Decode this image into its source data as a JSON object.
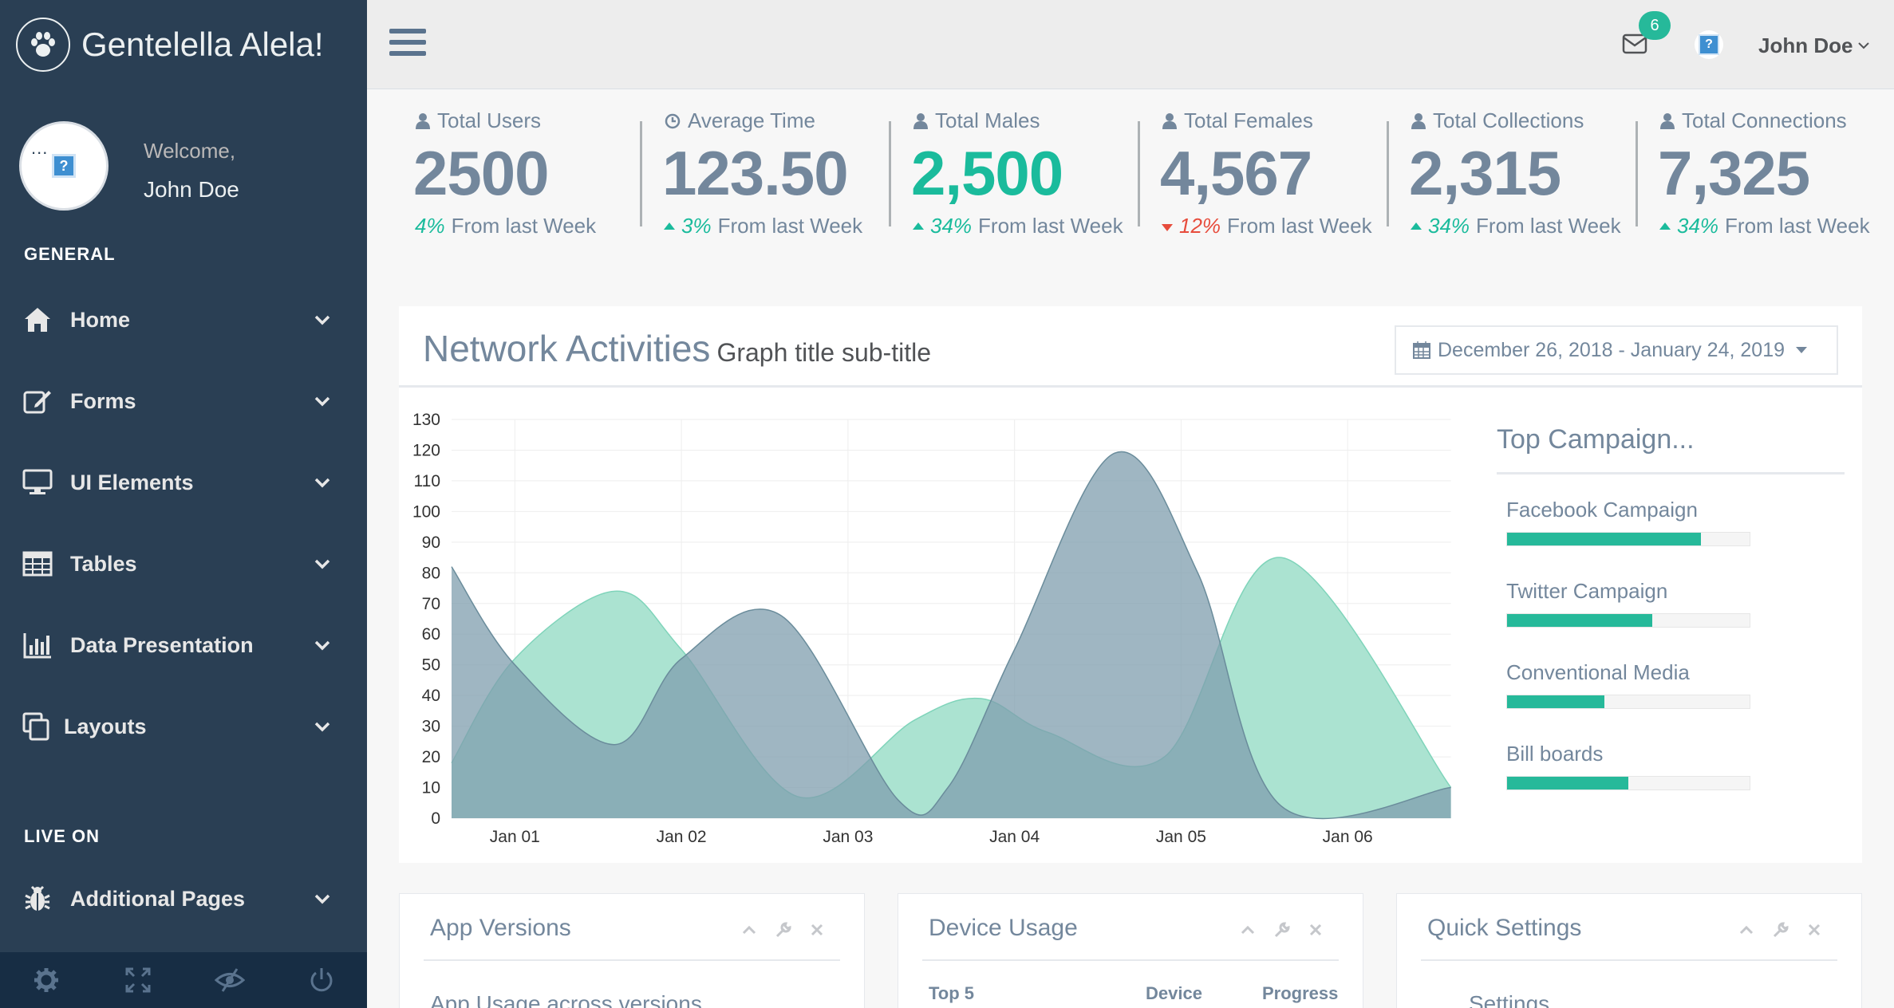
{
  "brand": {
    "title": "Gentelella Alela!",
    "logo_icon": "paw-icon"
  },
  "profile": {
    "welcome": "Welcome,",
    "name": "John Doe",
    "avatar_placeholder": "?",
    "dots": "..."
  },
  "sidebar": {
    "section_general": "GENERAL",
    "section_live": "LIVE ON",
    "items": [
      {
        "label": "Home",
        "icon": "home-icon"
      },
      {
        "label": "Forms",
        "icon": "edit-icon"
      },
      {
        "label": "UI Elements",
        "icon": "desktop-icon"
      },
      {
        "label": "Tables",
        "icon": "table-icon"
      },
      {
        "label": "Data Presentation",
        "icon": "bar-chart-icon"
      },
      {
        "label": "Layouts",
        "icon": "clone-icon"
      }
    ],
    "live_items": [
      {
        "label": "Additional Pages",
        "icon": "bug-icon"
      }
    ],
    "footer_icons": [
      "gear-icon",
      "fullscreen-icon",
      "eye-slash-icon",
      "power-icon"
    ]
  },
  "topnav": {
    "mail_count": "6",
    "user_name": "John Doe",
    "avatar_placeholder": "?"
  },
  "tiles": [
    {
      "label": "Total Users",
      "icon": "user-icon",
      "value": "2500",
      "value_color": "default",
      "pct": "4%",
      "trend": "none",
      "foot": "From last Week"
    },
    {
      "label": "Average Time",
      "icon": "clock-icon",
      "value": "123.50",
      "value_color": "default",
      "pct": "3%",
      "trend": "up",
      "foot": "From last Week"
    },
    {
      "label": "Total Males",
      "icon": "user-icon",
      "value": "2,500",
      "value_color": "green",
      "pct": "34%",
      "trend": "up",
      "foot": "From last Week"
    },
    {
      "label": "Total Females",
      "icon": "user-icon",
      "value": "4,567",
      "value_color": "default",
      "pct": "12%",
      "trend": "down",
      "foot": "From last Week"
    },
    {
      "label": "Total Collections",
      "icon": "user-icon",
      "value": "2,315",
      "value_color": "default",
      "pct": "34%",
      "trend": "up",
      "foot": "From last Week"
    },
    {
      "label": "Total Connections",
      "icon": "user-icon",
      "value": "7,325",
      "value_color": "default",
      "pct": "34%",
      "trend": "up",
      "foot": "From last Week"
    }
  ],
  "network": {
    "title": "Network Activities",
    "subtitle": "Graph title sub-title",
    "date_range": "December 26, 2018 - January 24, 2019"
  },
  "chart_data": {
    "type": "area",
    "x_ticks": [
      "Jan 01",
      "Jan 02",
      "Jan 03",
      "Jan 04",
      "Jan 05",
      "Jan 06"
    ],
    "ylim": [
      0,
      130
    ],
    "y_ticks": [
      0,
      10,
      20,
      30,
      40,
      50,
      60,
      70,
      80,
      90,
      100,
      110,
      120,
      130
    ],
    "grid": true,
    "series": [
      {
        "color": "#96CA59",
        "fill": "#A7E1CF",
        "stroke": "#7FD4BA",
        "x": [
          0.62,
          1.0,
          1.6,
          2.0,
          2.7,
          3.4,
          3.8,
          4.2,
          4.9,
          5.6,
          6.62
        ],
        "values": [
          18,
          52,
          74,
          55,
          7,
          32,
          39,
          28,
          20,
          85,
          10
        ]
      },
      {
        "color": "#3F97EB",
        "fill": "#7F9EAD",
        "stroke": "#6A8C9B",
        "x": [
          0.62,
          1.0,
          1.6,
          2.0,
          2.6,
          3.3,
          3.6,
          4.0,
          4.6,
          5.1,
          5.6,
          6.62
        ],
        "values": [
          82,
          50,
          24,
          52,
          66,
          6,
          10,
          55,
          119,
          80,
          4,
          10
        ]
      }
    ]
  },
  "campaigns": {
    "title": "Top Campaign...",
    "items": [
      {
        "label": "Facebook Campaign",
        "progress": 0.8
      },
      {
        "label": "Twitter Campaign",
        "progress": 0.6
      },
      {
        "label": "Conventional Media",
        "progress": 0.4
      },
      {
        "label": "Bill boards",
        "progress": 0.5
      }
    ]
  },
  "panels": [
    {
      "title": "App Versions",
      "sub": "App Usage across versions"
    },
    {
      "title": "Device Usage",
      "col1": "Top 5",
      "col2": "Device",
      "col3": "Progress"
    },
    {
      "title": "Quick Settings",
      "sub": "Settings"
    }
  ],
  "colors": {
    "sidebar": "#2A3F54",
    "accent": "#1ABB9C",
    "down": "#E74C3C"
  }
}
